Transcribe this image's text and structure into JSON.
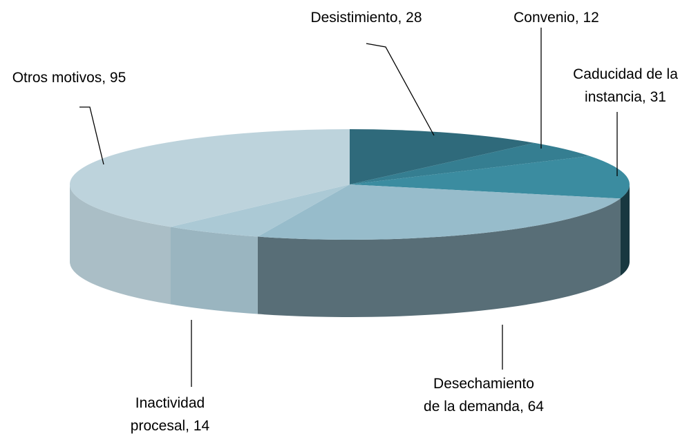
{
  "chart_data": {
    "type": "pie3d",
    "values": [
      28,
      12,
      31,
      64,
      14,
      95
    ],
    "value_labels": [
      "Desistimiento, 28",
      "Convenio, 12",
      "Caducidad de la instancia, 31",
      "Desechamiento de la demanda, 64",
      "Inactividad procesal, 14",
      "Otros motivos, 95"
    ],
    "colors": [
      "#2f6a7b",
      "#357e91",
      "#3b8ca0",
      "#97bccb",
      "#abc9d5",
      "#bdd3dc"
    ]
  }
}
